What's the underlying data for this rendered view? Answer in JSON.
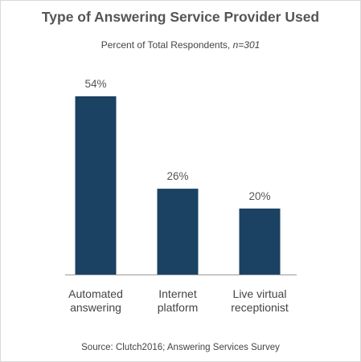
{
  "chart_data": {
    "type": "bar",
    "title": "Type of Answering Service Provider Used",
    "subtitle_prefix": "Percent of Total Respondents, ",
    "subtitle_n": "n=301",
    "categories": [
      [
        "Automated",
        "answering"
      ],
      [
        "Internet",
        "platform"
      ],
      [
        "Live virtual",
        "receptionist"
      ]
    ],
    "values": [
      54,
      26,
      20
    ],
    "value_labels": [
      "54%",
      "26%",
      "20%"
    ],
    "ylim": [
      0,
      54
    ],
    "grid": false,
    "legend": "none",
    "bar_color": "#1b4163",
    "source": "Source: Clutch2016; Answering Services Survey"
  }
}
